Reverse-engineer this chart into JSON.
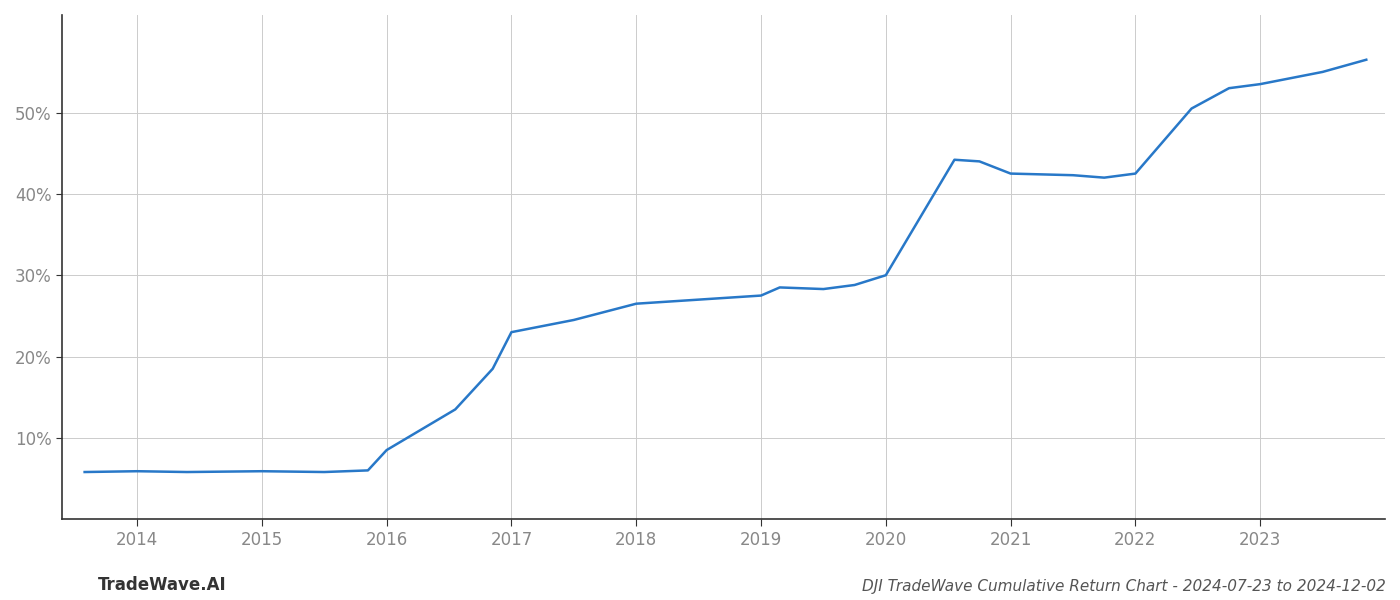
{
  "title": "DJI TradeWave Cumulative Return Chart - 2024-07-23 to 2024-12-02",
  "watermark": "TradeWave.AI",
  "line_color": "#2878c8",
  "background_color": "#ffffff",
  "grid_color": "#cccccc",
  "x_values": [
    2013.58,
    2014.0,
    2014.4,
    2015.0,
    2015.5,
    2015.85,
    2016.0,
    2016.55,
    2016.85,
    2017.0,
    2017.5,
    2018.0,
    2018.5,
    2019.0,
    2019.15,
    2019.5,
    2019.75,
    2020.0,
    2020.55,
    2020.75,
    2021.0,
    2021.5,
    2021.75,
    2022.0,
    2022.45,
    2022.75,
    2023.0,
    2023.5,
    2023.85
  ],
  "y_values": [
    5.8,
    5.9,
    5.8,
    5.9,
    5.8,
    6.0,
    8.5,
    13.5,
    18.5,
    23.0,
    24.5,
    26.5,
    27.0,
    27.5,
    28.5,
    28.3,
    28.8,
    30.0,
    44.2,
    44.0,
    42.5,
    42.3,
    42.0,
    42.5,
    50.5,
    53.0,
    53.5,
    55.0,
    56.5
  ],
  "xlim": [
    2013.4,
    2024.0
  ],
  "ylim": [
    0,
    62
  ],
  "yticks": [
    10,
    20,
    30,
    40,
    50
  ],
  "ytick_labels": [
    "10%",
    "20%",
    "30%",
    "40%",
    "50%"
  ],
  "xtick_positions": [
    2014,
    2015,
    2016,
    2017,
    2018,
    2019,
    2020,
    2021,
    2022,
    2023
  ],
  "xtick_labels": [
    "2014",
    "2015",
    "2016",
    "2017",
    "2018",
    "2019",
    "2020",
    "2021",
    "2022",
    "2023"
  ],
  "title_fontsize": 11,
  "tick_fontsize": 12,
  "watermark_fontsize": 12,
  "line_width": 1.8
}
